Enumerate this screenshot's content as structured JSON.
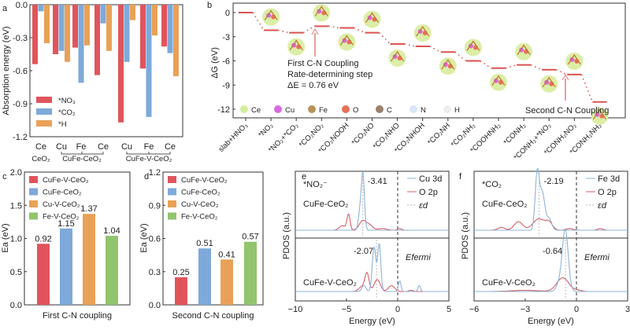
{
  "colors": {
    "red": "#e0555c",
    "blue": "#7ea9da",
    "orange": "#e9a157",
    "green": "#92c46e",
    "level": "#d9534f",
    "pdos_d": "#8fb3d6",
    "pdos_p": "#d2606a"
  },
  "chart_data": [
    {
      "panel": "a",
      "type": "bar",
      "ylabel": "Absorption energy (eV)",
      "ylim": [
        -1.2,
        0.0
      ],
      "yticks": [
        "0.0",
        "-0.3",
        "-0.6",
        "-0.9",
        "-1.2"
      ],
      "categories": [
        "Ce",
        "Cu",
        "Fe",
        "Ce",
        "Cu",
        "Fe",
        "Ce"
      ],
      "groups": [
        {
          "label": "CeO2",
          "sub": "CeO₂"
        },
        {
          "label": "CuFe-CeO2",
          "sub": "CuFe-CeO₂"
        },
        {
          "label": "CuFe-V-CeO2",
          "sub": "CuFe-V-CeO₂"
        }
      ],
      "series": [
        {
          "name": "*NO₃",
          "color": "red",
          "values": [
            -0.54,
            -0.45,
            -0.39,
            -0.64,
            -1.07,
            -0.58,
            -0.38
          ]
        },
        {
          "name": "*CO₂",
          "color": "blue",
          "values": [
            -0.06,
            -0.42,
            -0.71,
            -0.17,
            -0.52,
            -1.02,
            -0.44
          ]
        },
        {
          "name": "*H",
          "color": "orange",
          "values": [
            -0.35,
            -0.52,
            -0.37,
            -0.42,
            -0.14,
            -0.28,
            -0.65
          ]
        }
      ]
    },
    {
      "panel": "b",
      "type": "line",
      "ylabel": "ΔG (eV)",
      "ylim": [
        -13,
        1
      ],
      "yticks": [
        "0",
        "-3",
        "-6",
        "-9",
        "-12"
      ],
      "categories": [
        "slab+HNO₃",
        "*NO₂",
        "*NO₂+*CO₂",
        "*CO₂NO₂",
        "*CO₂NOOH",
        "*CO₂NO",
        "*CO₂NHO",
        "*CO₂NHOH",
        "*CO₂NH",
        "*CO₂NH₂",
        "*COOHNH₂",
        "*CONH₂",
        "*CONH₂+*NO₂",
        "*CONH₂NO₂",
        "*CONH₂NH₂"
      ],
      "values": [
        0,
        -2.2,
        -2.5,
        -1.7,
        -1.9,
        -2.5,
        -3.9,
        -4.2,
        -4.9,
        -6.0,
        -6.9,
        -6.5,
        -7.1,
        -7.7,
        -11.1
      ],
      "annotations": {
        "first": "First C-N Coupling",
        "rds": "Rate-determining step",
        "de": "ΔE = 0.76 eV",
        "second": "Second C-N Coupling"
      },
      "legend": [
        {
          "name": "Ce",
          "color": "#d4ef9a"
        },
        {
          "name": "Cu",
          "color": "#d86ae0"
        },
        {
          "name": "Fe",
          "color": "#b8925a"
        },
        {
          "name": "O",
          "color": "#e8705a"
        },
        {
          "name": "C",
          "color": "#9a7f6a"
        },
        {
          "name": "N",
          "color": "#d8e6f6"
        },
        {
          "name": "H",
          "color": "#eeeeee"
        }
      ]
    },
    {
      "panel": "c",
      "type": "bar",
      "xlabel": "First C-N coupling",
      "ylabel": "Ea (eV)",
      "ylim": [
        0,
        2.0
      ],
      "yticks": [
        "0.0",
        "0.5",
        "1.0",
        "1.5",
        "2.0"
      ],
      "categories": [
        "CuFe-V-CeO₂",
        "CuFe-CeO₂",
        "Cu-V-CeO₂",
        "Fe-V-CeO₂"
      ],
      "bar_colors": [
        "red",
        "blue",
        "orange",
        "green"
      ],
      "values": [
        0.92,
        1.15,
        1.37,
        1.04
      ]
    },
    {
      "panel": "d",
      "type": "bar",
      "xlabel": "Second C-N coupling",
      "ylabel": "Ea (eV)",
      "ylim": [
        0,
        1.2
      ],
      "yticks": [
        "0.0",
        "0.3",
        "0.6",
        "0.9",
        "1.2"
      ],
      "categories": [
        "CuFe-V-CeO₂",
        "CuFe-CeO₂",
        "Cu-V-CeO₂",
        "Fe-V-CeO₂"
      ],
      "bar_colors": [
        "red",
        "blue",
        "orange",
        "green"
      ],
      "values": [
        0.25,
        0.51,
        0.41,
        0.57
      ]
    },
    {
      "panel": "e",
      "type": "line",
      "xlabel": "Energy (eV)",
      "ylabel": "PDOS (a.u.)",
      "xlim": [
        -10,
        5
      ],
      "xticks": [
        "-10",
        "-5",
        "0",
        "5"
      ],
      "adsorbate": "*NO₂⁻",
      "legend": [
        "Cu 3d",
        "O 2p",
        "εd"
      ],
      "fermi_label": "Efermi",
      "subplots": [
        {
          "label": "CuFe-CeO₂",
          "d_band_center": -3.41,
          "d_band_center_label": "-3.41",
          "d_peaks": [
            [
              -3.4,
              1.0,
              0.15
            ],
            [
              -3.7,
              0.3,
              0.15
            ]
          ],
          "p_peaks": [
            [
              -4.8,
              0.28,
              0.15
            ],
            [
              -5.4,
              0.08,
              0.3
            ],
            [
              -3.4,
              0.17,
              0.35
            ],
            [
              -2.7,
              0.08,
              0.3
            ],
            [
              -1.5,
              0.03,
              0.4
            ],
            [
              0.2,
              0.03,
              0.2
            ]
          ]
        },
        {
          "label": "CuFe-V-CeO₂",
          "d_band_center": -2.07,
          "d_band_center_label": "-2.07",
          "d_peaks": [
            [
              -2.3,
              0.75,
              0.18
            ],
            [
              -1.8,
              0.8,
              0.15
            ],
            [
              -3.3,
              0.1,
              0.2
            ],
            [
              0.2,
              0.18,
              0.12
            ],
            [
              2.1,
              0.1,
              0.12
            ]
          ],
          "p_peaks": [
            [
              -3.0,
              0.3,
              0.2
            ],
            [
              -2.0,
              0.2,
              0.3
            ],
            [
              -0.6,
              0.1,
              0.3
            ],
            [
              -3.5,
              0.08,
              0.3
            ],
            [
              1.3,
              0.02,
              0.2
            ]
          ]
        }
      ]
    },
    {
      "panel": "f",
      "type": "line",
      "xlabel": "Energy (eV)",
      "ylabel": "PDOS (a.u.)",
      "xlim": [
        -6,
        3
      ],
      "xticks": [
        "-6",
        "-3",
        "0",
        "3"
      ],
      "adsorbate": "*CO₂",
      "legend": [
        "Fe 3d",
        "O 2p",
        "εd"
      ],
      "fermi_label": "Efermi",
      "subplots": [
        {
          "label": "CuFe-CeO₂",
          "d_band_center": -2.19,
          "d_band_center_label": "-2.19",
          "d_peaks": [
            [
              -2.3,
              1.0,
              0.12
            ],
            [
              -2.0,
              0.65,
              0.15
            ],
            [
              -1.6,
              0.2,
              0.15
            ]
          ],
          "p_peaks": [
            [
              -3.4,
              0.15,
              0.25
            ],
            [
              -4.4,
              0.05,
              0.2
            ],
            [
              -2.2,
              0.2,
              0.35
            ],
            [
              -1.6,
              0.12,
              0.2
            ],
            [
              -0.4,
              0.03,
              0.2
            ],
            [
              1.4,
              0.03,
              0.15
            ]
          ]
        },
        {
          "label": "CuFe-V-CeO₂",
          "d_band_center": -0.64,
          "d_band_center_label": "-0.64",
          "d_peaks": [
            [
              -0.65,
              1.0,
              0.17
            ],
            [
              -0.95,
              0.15,
              0.2
            ]
          ],
          "p_peaks": [
            [
              -0.8,
              0.23,
              0.35
            ],
            [
              -3.0,
              0.02,
              0.8
            ],
            [
              0.1,
              0.02,
              0.2
            ]
          ]
        }
      ]
    }
  ],
  "panel_letters": [
    "a",
    "b",
    "c",
    "d",
    "e",
    "f"
  ]
}
